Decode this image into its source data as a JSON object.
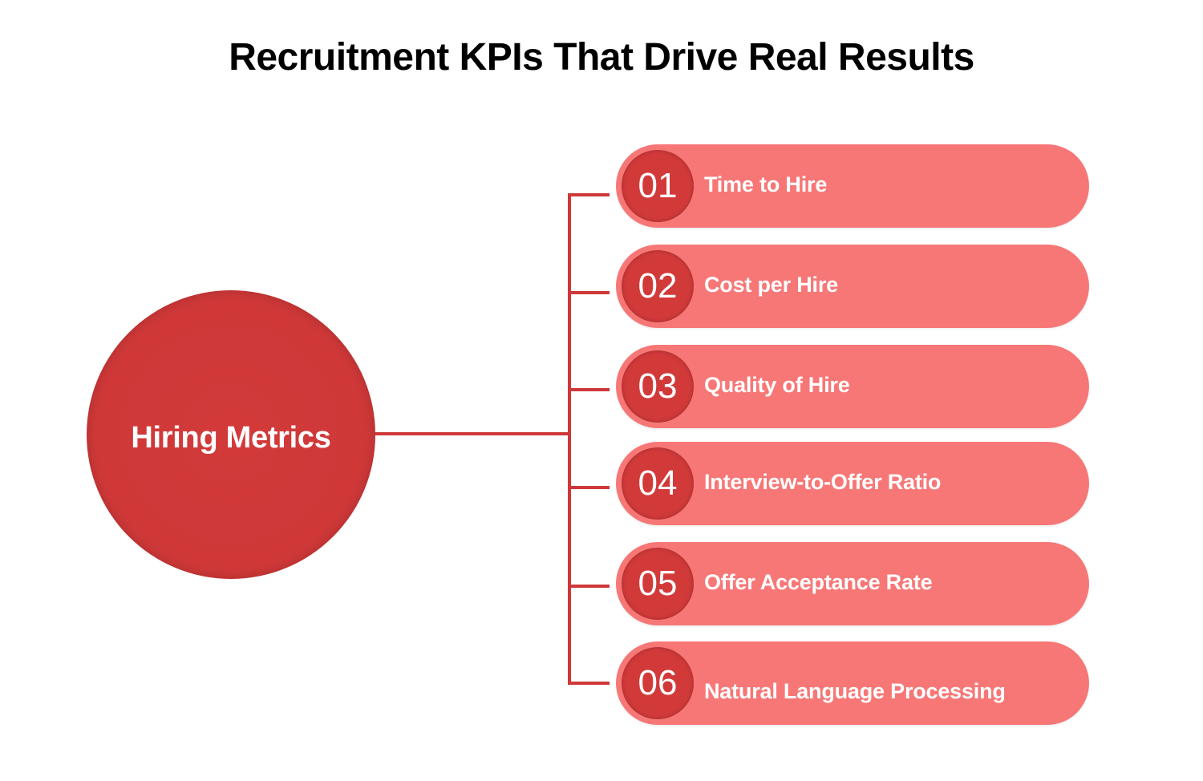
{
  "title": "Recruitment KPIs That Drive Real Results",
  "hub": {
    "label": "Hiring Metrics"
  },
  "items": [
    {
      "number": "01",
      "label": "Time to Hire"
    },
    {
      "number": "02",
      "label": "Cost per Hire"
    },
    {
      "number": "03",
      "label": "Quality of Hire"
    },
    {
      "number": "04",
      "label": "Interview-to-Offer Ratio"
    },
    {
      "number": "05",
      "label": "Offer Acceptance Rate"
    },
    {
      "number": "06",
      "label": "Natural Language Processing"
    }
  ],
  "colors": {
    "hub": "#d23a3a",
    "pill": "#f77777",
    "number_badge": "#d23a3a",
    "connector": "#cf3838",
    "text_on_color": "#ffffff",
    "title": "#000000"
  }
}
